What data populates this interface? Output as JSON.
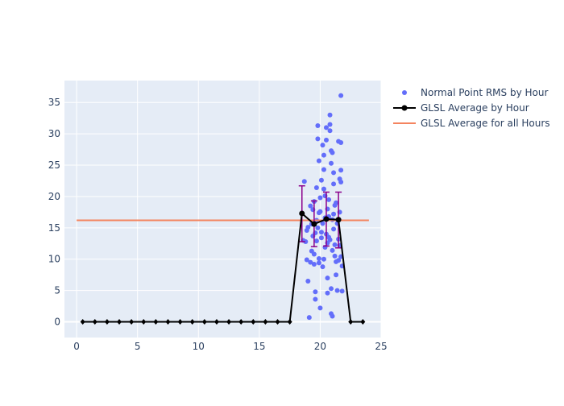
{
  "chart_data": {
    "type": "scatter",
    "x": {
      "range": [
        -1,
        25
      ],
      "ticks": [
        0,
        5,
        10,
        15,
        20,
        25
      ]
    },
    "y": {
      "range": [
        -2.5,
        38.5
      ],
      "ticks": [
        0,
        5,
        10,
        15,
        20,
        25,
        30,
        35
      ]
    },
    "grid": true,
    "legend_position": "top-right",
    "colors": {
      "plot_bg": "#e5ecf6",
      "grid": "#ffffff",
      "scatter": "#636efa",
      "avg_line": "#000000",
      "overall_line": "#f4845f",
      "error_bars": "#8b008b"
    },
    "series": [
      {
        "name": "Normal Point RMS by Hour",
        "type": "scatter",
        "points": [
          [
            18.7,
            22.4
          ],
          [
            18.6,
            13.0
          ],
          [
            18.9,
            9.9
          ],
          [
            19.0,
            6.5
          ],
          [
            19.1,
            0.7
          ],
          [
            18.8,
            12.8
          ],
          [
            18.9,
            14.6
          ],
          [
            19.0,
            15.1
          ],
          [
            19.2,
            18.5
          ],
          [
            19.3,
            11.3
          ],
          [
            19.4,
            13.7
          ],
          [
            19.5,
            9.2
          ],
          [
            19.6,
            4.8
          ],
          [
            19.6,
            3.6
          ],
          [
            19.7,
            21.4
          ],
          [
            19.7,
            16.2
          ],
          [
            19.8,
            31.3
          ],
          [
            19.8,
            29.2
          ],
          [
            19.9,
            25.7
          ],
          [
            19.9,
            17.4
          ],
          [
            19.9,
            10.1
          ],
          [
            20.0,
            2.2
          ],
          [
            20.0,
            19.8
          ],
          [
            20.1,
            22.6
          ],
          [
            20.1,
            14.3
          ],
          [
            20.2,
            8.8
          ],
          [
            20.2,
            28.2
          ],
          [
            20.3,
            26.6
          ],
          [
            20.3,
            24.3
          ],
          [
            20.4,
            20.1
          ],
          [
            20.4,
            11.9
          ],
          [
            20.5,
            31.0
          ],
          [
            20.5,
            29.0
          ],
          [
            20.6,
            4.6
          ],
          [
            20.6,
            7.0
          ],
          [
            20.7,
            13.5
          ],
          [
            20.7,
            16.8
          ],
          [
            20.8,
            33.0
          ],
          [
            20.8,
            31.5
          ],
          [
            20.8,
            30.5
          ],
          [
            20.9,
            27.3
          ],
          [
            20.9,
            25.3
          ],
          [
            20.9,
            5.3
          ],
          [
            20.9,
            1.3
          ],
          [
            21.0,
            0.9
          ],
          [
            21.0,
            27.0
          ],
          [
            21.1,
            23.8
          ],
          [
            21.1,
            22.0
          ],
          [
            21.2,
            18.6
          ],
          [
            21.2,
            12.3
          ],
          [
            21.3,
            9.6
          ],
          [
            21.3,
            7.5
          ],
          [
            21.4,
            5.0
          ],
          [
            21.5,
            28.8
          ],
          [
            21.6,
            22.8
          ],
          [
            21.6,
            17.5
          ],
          [
            21.7,
            36.1
          ],
          [
            21.7,
            28.6
          ],
          [
            21.7,
            24.2
          ],
          [
            21.7,
            22.3
          ],
          [
            21.7,
            10.4
          ],
          [
            21.8,
            8.9
          ],
          [
            21.8,
            4.9
          ],
          [
            19.5,
            19.2
          ],
          [
            19.6,
            14.2
          ],
          [
            19.7,
            12.9
          ],
          [
            20.0,
            17.6
          ],
          [
            20.1,
            13.4
          ],
          [
            20.3,
            21.2
          ],
          [
            20.4,
            16.6
          ],
          [
            20.6,
            18.0
          ],
          [
            20.7,
            19.5
          ],
          [
            21.0,
            16.3
          ],
          [
            21.1,
            14.8
          ],
          [
            21.4,
            15.7
          ],
          [
            21.5,
            13.2
          ],
          [
            19.3,
            15.6
          ],
          [
            19.4,
            17.9
          ],
          [
            19.8,
            15.0
          ],
          [
            20.2,
            15.7
          ],
          [
            20.5,
            14.0
          ],
          [
            20.8,
            13.1
          ],
          [
            21.1,
            17.2
          ],
          [
            21.3,
            19.0
          ],
          [
            21.6,
            12.2
          ],
          [
            19.2,
            9.5
          ],
          [
            19.5,
            10.8
          ],
          [
            19.9,
            9.4
          ],
          [
            20.3,
            10.0
          ],
          [
            20.6,
            12.6
          ],
          [
            21.0,
            11.4
          ],
          [
            21.2,
            10.5
          ],
          [
            21.5,
            9.8
          ]
        ]
      },
      {
        "name": "GLSL Average by Hour",
        "type": "line",
        "points": [
          [
            0.5,
            0
          ],
          [
            1.5,
            0
          ],
          [
            2.5,
            0
          ],
          [
            3.5,
            0
          ],
          [
            4.5,
            0
          ],
          [
            5.5,
            0
          ],
          [
            6.5,
            0
          ],
          [
            7.5,
            0
          ],
          [
            8.5,
            0
          ],
          [
            9.5,
            0
          ],
          [
            10.5,
            0
          ],
          [
            11.5,
            0
          ],
          [
            12.5,
            0
          ],
          [
            13.5,
            0
          ],
          [
            14.5,
            0
          ],
          [
            15.5,
            0
          ],
          [
            16.5,
            0
          ],
          [
            17.5,
            0
          ],
          [
            18.5,
            17.3
          ],
          [
            19.5,
            15.6
          ],
          [
            20.5,
            16.4
          ],
          [
            21.5,
            16.3
          ],
          [
            22.5,
            0
          ],
          [
            23.5,
            0
          ]
        ],
        "error_bars": [
          {
            "x": 18.5,
            "low": 12.8,
            "high": 21.7
          },
          {
            "x": 19.5,
            "low": 12.0,
            "high": 19.3
          },
          {
            "x": 20.5,
            "low": 12.1,
            "high": 20.7
          },
          {
            "x": 21.5,
            "low": 11.8,
            "high": 20.7
          }
        ]
      },
      {
        "name": "GLSL Average for all Hours",
        "type": "hline",
        "value": 16.2,
        "x_extent": [
          0,
          24
        ]
      }
    ]
  }
}
